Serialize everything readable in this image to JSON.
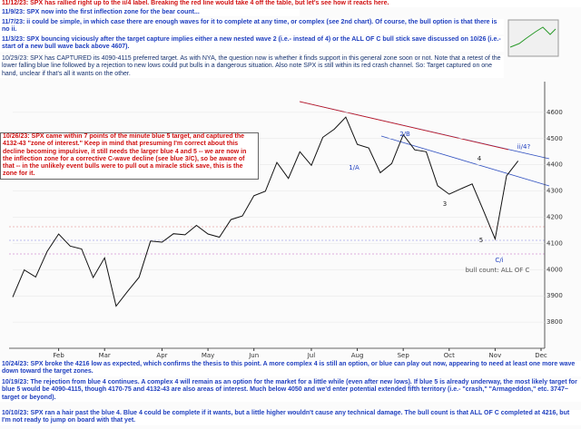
{
  "chart_data": {
    "type": "line",
    "categories": [
      null,
      null,
      null,
      null,
      "Feb",
      null,
      null,
      null,
      "Mar",
      null,
      null,
      null,
      null,
      "Apr",
      null,
      null,
      null,
      "May",
      null,
      null,
      null,
      "Jun",
      null,
      null,
      null,
      null,
      "Jul",
      null,
      null,
      null,
      "Aug",
      null,
      null,
      null,
      "Sep",
      null,
      null,
      null,
      "Oct",
      null,
      null,
      null,
      "Nov",
      null,
      null,
      null,
      "Dec"
    ],
    "series": [
      {
        "name": "SPX",
        "color": "#111111",
        "values": [
          3895,
          3999,
          3972,
          4070,
          4136,
          4090,
          4079,
          3970,
          4045,
          3861,
          3917,
          3971,
          4109,
          4105,
          4137,
          4133,
          4169,
          4136,
          4124,
          4191,
          4205,
          4282,
          4299,
          4409,
          4348,
          4450,
          4398,
          4505,
          4536,
          4582,
          4478,
          4464,
          4370,
          4405,
          4515,
          4457,
          4450,
          4320,
          4288,
          4308,
          4327,
          4224,
          4117,
          4358,
          4415,
          null,
          null
        ]
      }
    ],
    "ylim": [
      3700,
      4700
    ],
    "yticks": [
      3800,
      3900,
      4000,
      4100,
      4200,
      4300,
      4400,
      4500,
      4600
    ],
    "annotations": [
      "2/B",
      "1/A",
      "ii/4?",
      "C/i",
      "3",
      "4",
      "5",
      "bull count:  ALL OF C"
    ]
  },
  "notes": [
    "11/12/23:  SPX has rallied right up to the ii/4 label.  Breaking the red line would take 4 off the table, but let's see how it reacts here.",
    "11/9/23:  SPX now into the first inflection zone for the bear count...",
    "11/7/23:  ii could be simple, in which case there are enough waves for it to complete at any time, or complex (see 2nd chart).  Of course, the bull option is that there is no ii.",
    "11/3/23:  SPX bouncing viciously after the target capture implies either a new nested wave 2 (i.e.- instead of 4) or the ALL OF C bull stick save discussed on 10/26 (i.e.- start of a new bull wave back above 4607).",
    "10/29/23:  SPX has CAPTURED its 4090-4115 preferred target.  As with NYA, the question now is whether it finds support in this general zone soon or not.  Note that a retest of the lower falling blue line followed by a rejection to new lows could put bulls in a dangerous situation.  Also note SPX is still within its red crash channel.  So:  Target captured on one hand, unclear if that's all it wants on the other.",
    "10/26/23:  SPX came within 7 points of the minute blue 5 target, and captured the 4132-43 \"zone of interest.\"  Keep in mind that presuming I'm correct about this decline becoming impulsive, it still needs the larger blue 4 and 5 -- we are now in the inflection zone for a corrective C-wave decline (see blue 3/C), so be aware of that -- in the unlikely event bulls were to pull out a miracle stick save, this is the zone for it.",
    "10/24/23:  SPX broke the 4216 low as expected, which confirms the thesis to this point.  A more complex 4 is still an option, or blue can play out now, appearing to need at least one more wave down toward the target zones.",
    "10/19/23:  The rejection from blue 4 continues.  A complex 4 will remain as an option for the market for a little while (even after new lows).  If blue 5 is already underway, the most likely target for blue 5 would be 4090-4115, though 4170-75 and 4132-43 are also areas of interest.  Much below 4050 and we'd enter potential extended fifth territory (i.e.- \"crash,\" \"Armageddon,\" etc. 3747~ target or beyond).",
    "10/10/23:  SPX ran a hair past the blue 4.  Blue 4 could be complete if it wants, but a little higher wouldn't cause any technical damage.  The bull count is that ALL OF C completed at 4216, but I'm not ready to jump on board with that yet."
  ]
}
